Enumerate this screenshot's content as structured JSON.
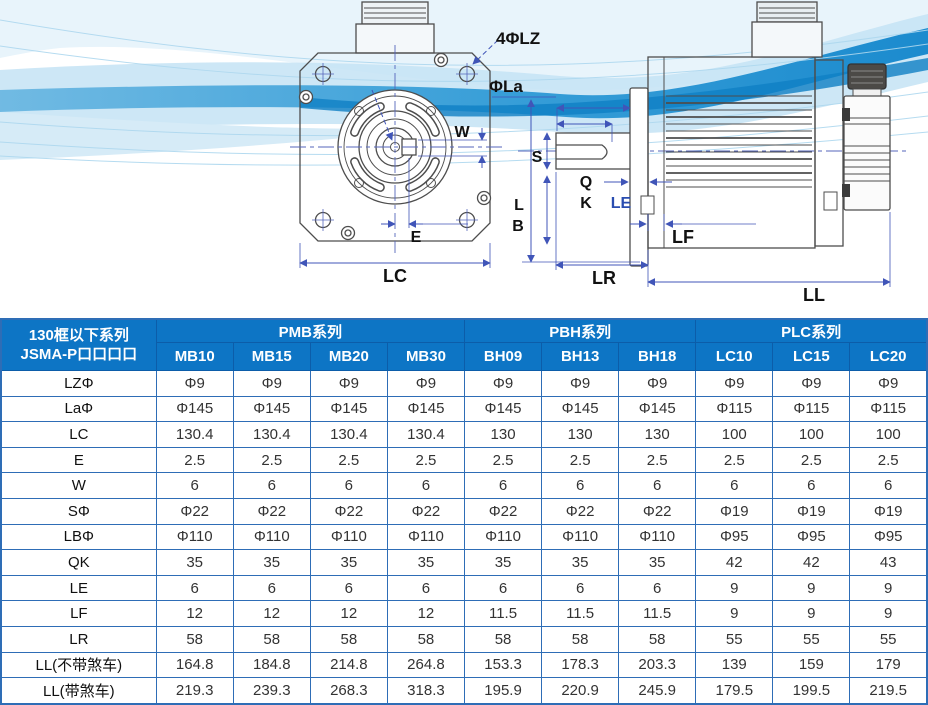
{
  "drawing": {
    "labels": {
      "lz": "4ΦLZ",
      "la": "ΦLa",
      "w": "W",
      "s": "S",
      "q": "Q",
      "k": "K",
      "le": "LE",
      "l": "L",
      "b": "B",
      "e": "E",
      "lc": "LC",
      "lf": "LF",
      "lr": "LR",
      "ll": "LL"
    },
    "colors": {
      "line": "#4d4d4d",
      "dimension": "#4055b8",
      "centerline": "#5566bb",
      "wave_core": "#1286cc"
    }
  },
  "table": {
    "corner_title_line1": "130框以下系列",
    "corner_title_line2": "JSMA-P口口口口",
    "groups": [
      {
        "label": "PMB系列",
        "cols": [
          "MB10",
          "MB15",
          "MB20",
          "MB30"
        ]
      },
      {
        "label": "PBH系列",
        "cols": [
          "BH09",
          "BH13",
          "BH18"
        ]
      },
      {
        "label": "PLC系列",
        "cols": [
          "LC10",
          "LC15",
          "LC20"
        ]
      }
    ],
    "rows": [
      {
        "label": "LZΦ",
        "values": [
          "Φ9",
          "Φ9",
          "Φ9",
          "Φ9",
          "Φ9",
          "Φ9",
          "Φ9",
          "Φ9",
          "Φ9",
          "Φ9"
        ]
      },
      {
        "label": "LaΦ",
        "values": [
          "Φ145",
          "Φ145",
          "Φ145",
          "Φ145",
          "Φ145",
          "Φ145",
          "Φ145",
          "Φ115",
          "Φ115",
          "Φ115"
        ]
      },
      {
        "label": "LC",
        "values": [
          "130.4",
          "130.4",
          "130.4",
          "130.4",
          "130",
          "130",
          "130",
          "100",
          "100",
          "100"
        ]
      },
      {
        "label": "E",
        "values": [
          "2.5",
          "2.5",
          "2.5",
          "2.5",
          "2.5",
          "2.5",
          "2.5",
          "2.5",
          "2.5",
          "2.5"
        ]
      },
      {
        "label": "W",
        "values": [
          "6",
          "6",
          "6",
          "6",
          "6",
          "6",
          "6",
          "6",
          "6",
          "6"
        ]
      },
      {
        "label": "SΦ",
        "values": [
          "Φ22",
          "Φ22",
          "Φ22",
          "Φ22",
          "Φ22",
          "Φ22",
          "Φ22",
          "Φ19",
          "Φ19",
          "Φ19"
        ]
      },
      {
        "label": "LBΦ",
        "values": [
          "Φ110",
          "Φ110",
          "Φ110",
          "Φ110",
          "Φ110",
          "Φ110",
          "Φ110",
          "Φ95",
          "Φ95",
          "Φ95"
        ]
      },
      {
        "label": "QK",
        "values": [
          "35",
          "35",
          "35",
          "35",
          "35",
          "35",
          "35",
          "42",
          "42",
          "43"
        ]
      },
      {
        "label": "LE",
        "values": [
          "6",
          "6",
          "6",
          "6",
          "6",
          "6",
          "6",
          "9",
          "9",
          "9"
        ]
      },
      {
        "label": "LF",
        "values": [
          "12",
          "12",
          "12",
          "12",
          "11.5",
          "11.5",
          "11.5",
          "9",
          "9",
          "9"
        ]
      },
      {
        "label": "LR",
        "values": [
          "58",
          "58",
          "58",
          "58",
          "58",
          "58",
          "58",
          "55",
          "55",
          "55"
        ]
      },
      {
        "label": "LL(不带煞车)",
        "values": [
          "164.8",
          "184.8",
          "214.8",
          "264.8",
          "153.3",
          "178.3",
          "203.3",
          "139",
          "159",
          "179"
        ]
      },
      {
        "label": "LL(带煞车)",
        "values": [
          "219.3",
          "239.3",
          "268.3",
          "318.3",
          "195.9",
          "220.9",
          "245.9",
          "179.5",
          "199.5",
          "219.5"
        ]
      }
    ],
    "colors": {
      "header_bg": "#0d75c5",
      "border": "#2e6db6",
      "cell_text": "#333333"
    }
  }
}
